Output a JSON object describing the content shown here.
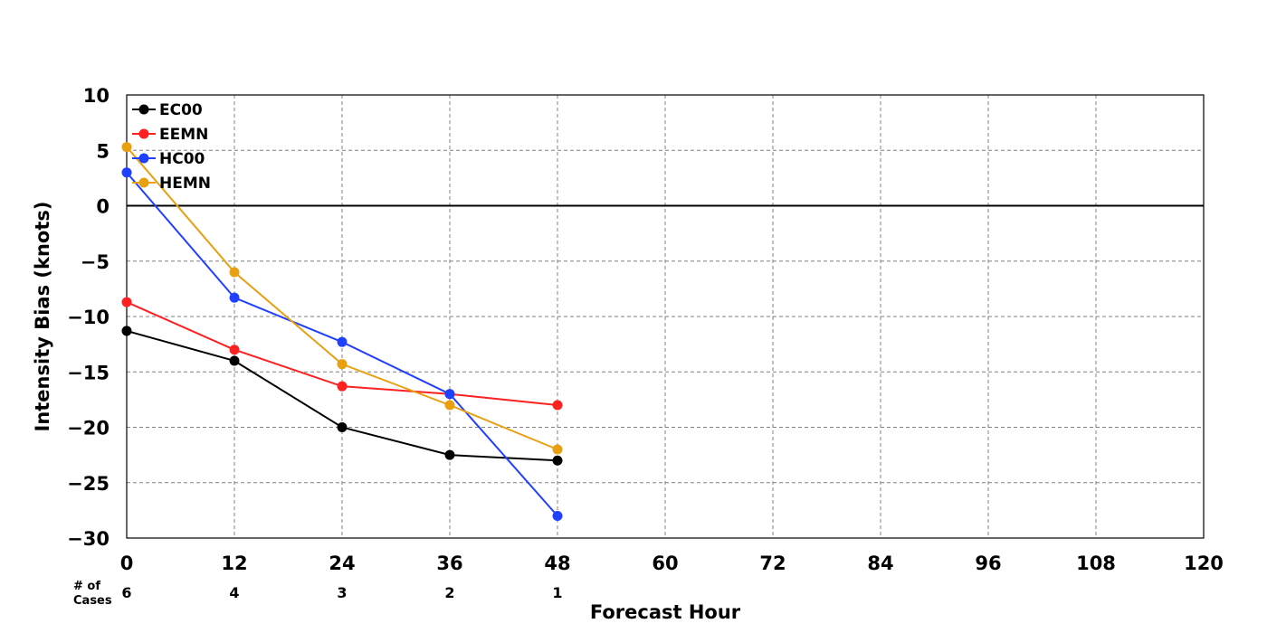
{
  "chart_data": {
    "type": "line",
    "title": "",
    "xlabel": "Forecast Hour",
    "ylabel": "Intensity Bias (knots)",
    "xlim": [
      0,
      120
    ],
    "ylim": [
      -30,
      10
    ],
    "xticks": [
      0,
      12,
      24,
      36,
      48,
      60,
      72,
      84,
      96,
      108,
      120
    ],
    "yticks": [
      10,
      5,
      0,
      -5,
      -10,
      -15,
      -20,
      -25,
      -30
    ],
    "xtick_labels": [
      "0",
      "12",
      "24",
      "36",
      "48",
      "60",
      "72",
      "84",
      "96",
      "108",
      "120"
    ],
    "ytick_labels": [
      "10",
      "5",
      "0",
      "−5",
      "−10",
      "−15",
      "−20",
      "−25",
      "−30"
    ],
    "grid": true,
    "legend_position": "top-left",
    "x": [
      0,
      12,
      24,
      36,
      48
    ],
    "series": [
      {
        "name": "EC00",
        "color": "#000000",
        "values": [
          -11.3,
          -14.0,
          -20.0,
          -22.5,
          -23.0
        ]
      },
      {
        "name": "EEMN",
        "color": "#ff2020",
        "values": [
          -8.7,
          -13.0,
          -16.3,
          -17.0,
          -18.0
        ]
      },
      {
        "name": "HC00",
        "color": "#2040ff",
        "values": [
          3.0,
          -8.3,
          -12.3,
          -17.0,
          -28.0
        ]
      },
      {
        "name": "HEMN",
        "color": "#e8a010",
        "values": [
          5.3,
          -6.0,
          -14.3,
          -18.0,
          -22.0
        ]
      }
    ],
    "cases": {
      "label": "# of\nCases",
      "label_line1": "# of",
      "label_line2": "Cases",
      "values": [
        "6",
        "4",
        "3",
        "2",
        "1"
      ]
    }
  }
}
